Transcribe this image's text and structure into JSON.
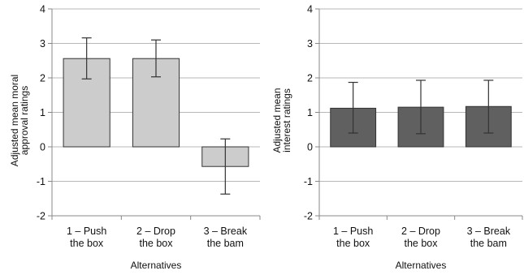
{
  "chart_data": [
    {
      "type": "bar",
      "title": "",
      "categories": [
        [
          "1 – Push",
          "the box"
        ],
        [
          "2 – Drop",
          "the box"
        ],
        [
          "3 – Break",
          "the bam"
        ]
      ],
      "values": [
        2.56,
        2.56,
        -0.57
      ],
      "error_low": [
        1.97,
        2.03,
        -1.37
      ],
      "error_high": [
        3.16,
        3.1,
        0.23
      ],
      "xlabel": "Alternatives",
      "ylabel": [
        "Adjusted mean moral",
        "approval ratings"
      ],
      "ylim": [
        -2,
        4
      ],
      "yticks": [
        -2,
        -1,
        0,
        1,
        2,
        3,
        4
      ],
      "grid": true,
      "bar_color": "#cccccc"
    },
    {
      "type": "bar",
      "title": "",
      "categories": [
        [
          "1 – Push",
          "the box"
        ],
        [
          "2 – Drop",
          "the box"
        ],
        [
          "3 – Break",
          "the bam"
        ]
      ],
      "values": [
        1.12,
        1.15,
        1.17
      ],
      "error_low": [
        0.4,
        0.38,
        0.4
      ],
      "error_high": [
        1.87,
        1.93,
        1.93
      ],
      "xlabel": "Alternatives",
      "ylabel": [
        "Adjusted mean",
        "interest ratings"
      ],
      "ylim": [
        -2,
        4
      ],
      "yticks": [
        -2,
        -1,
        0,
        1,
        2,
        3,
        4
      ],
      "grid": true,
      "bar_color": "#606060"
    }
  ]
}
